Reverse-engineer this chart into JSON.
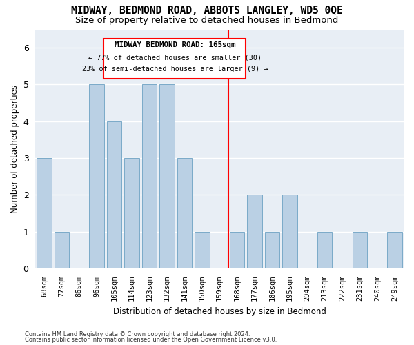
{
  "title": "MIDWAY, BEDMOND ROAD, ABBOTS LANGLEY, WD5 0QE",
  "subtitle": "Size of property relative to detached houses in Bedmond",
  "xlabel": "Distribution of detached houses by size in Bedmond",
  "ylabel": "Number of detached properties",
  "categories": [
    "68sqm",
    "77sqm",
    "86sqm",
    "96sqm",
    "105sqm",
    "114sqm",
    "123sqm",
    "132sqm",
    "141sqm",
    "150sqm",
    "159sqm",
    "168sqm",
    "177sqm",
    "186sqm",
    "195sqm",
    "204sqm",
    "213sqm",
    "222sqm",
    "231sqm",
    "240sqm",
    "249sqm"
  ],
  "values": [
    3,
    1,
    0,
    5,
    4,
    3,
    5,
    5,
    3,
    1,
    0,
    1,
    2,
    1,
    2,
    0,
    1,
    0,
    1,
    0,
    1
  ],
  "bar_color": "#bad0e4",
  "bar_edge_color": "#7aaac8",
  "vline_color": "red",
  "annotation_title": "MIDWAY BEDMOND ROAD: 165sqm",
  "annotation_line1": "← 77% of detached houses are smaller (30)",
  "annotation_line2": "23% of semi-detached houses are larger (9) →",
  "footer_line1": "Contains HM Land Registry data © Crown copyright and database right 2024.",
  "footer_line2": "Contains public sector information licensed under the Open Government Licence v3.0.",
  "ylim": [
    0,
    6.5
  ],
  "yticks": [
    0,
    1,
    2,
    3,
    4,
    5,
    6
  ],
  "background_color": "#ffffff",
  "plot_background": "#e8eef5",
  "title_fontsize": 10.5,
  "subtitle_fontsize": 9.5
}
